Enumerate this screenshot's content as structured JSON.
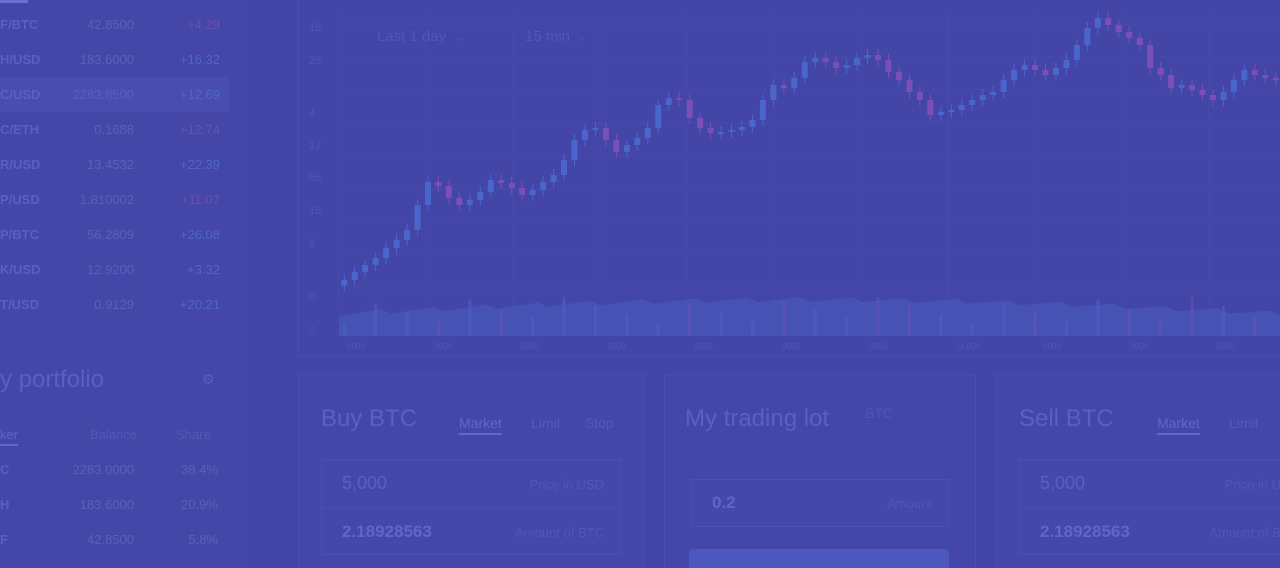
{
  "pairs": [
    {
      "name": "F/BTC",
      "price": "42.8500",
      "change": "+4.29",
      "trend": "neg"
    },
    {
      "name": "H/USD",
      "price": "183.6000",
      "change": "+16.32",
      "trend": "pos"
    },
    {
      "name": "C/USD",
      "price": "2283.8500",
      "change": "+12.69",
      "trend": "pos"
    },
    {
      "name": "C/ETH",
      "price": "0.1688",
      "change": "+12.74",
      "trend": "neg"
    },
    {
      "name": "R/USD",
      "price": "13.4532",
      "change": "+22.39",
      "trend": "pos"
    },
    {
      "name": "P/USD",
      "price": "1.810002",
      "change": "+11.07",
      "trend": "neg"
    },
    {
      "name": "P/BTC",
      "price": "56.2809",
      "change": "+26.08",
      "trend": "pos"
    },
    {
      "name": "K/USD",
      "price": "12.9200",
      "change": "+3.32",
      "trend": "pos"
    },
    {
      "name": "T/USD",
      "price": "0.9129",
      "change": "+20.21",
      "trend": "pos"
    }
  ],
  "portfolio": {
    "title": "y portfolio",
    "headers": {
      "ticker": "ker",
      "balance": "Balance",
      "share": "Share"
    },
    "rows": [
      {
        "ticker": "C",
        "balance": "2283.0000",
        "share": "38.4%"
      },
      {
        "ticker": "H",
        "balance": "183.6000",
        "share": "20.9%"
      },
      {
        "ticker": "F",
        "balance": "42.8500",
        "share": "5.8%"
      }
    ]
  },
  "chart": {
    "range_label": "Last 1 day",
    "interval_label": "15 min",
    "y_ticks": [
      {
        "label": "15",
        "top": 22
      },
      {
        "label": "25",
        "top": 55
      },
      {
        "label": "4",
        "top": 108
      },
      {
        "label": "17",
        "top": 140
      },
      {
        "label": "05",
        "top": 172
      },
      {
        "label": "15",
        "top": 205
      },
      {
        "label": "5",
        "top": 238
      },
      {
        "label": "0",
        "top": 292
      },
      {
        "label": "0",
        "top": 325
      }
    ],
    "x_ticks": [
      "0000",
      "0000",
      "0000",
      "0000",
      "0000",
      "0000",
      "0000",
      "11.000",
      "0000",
      "0000",
      "0000"
    ]
  },
  "chart_data": {
    "type": "candlestick",
    "colors": {
      "up": "#4a66cc",
      "down": "#7a4fb6",
      "volume": "#4a5bc0"
    },
    "closes": [
      280,
      272,
      265,
      258,
      248,
      240,
      230,
      205,
      182,
      186,
      198,
      205,
      200,
      192,
      180,
      183,
      188,
      195,
      190,
      182,
      175,
      160,
      140,
      130,
      128,
      140,
      152,
      145,
      138,
      128,
      105,
      98,
      100,
      118,
      128,
      133,
      132,
      130,
      127,
      120,
      100,
      85,
      88,
      78,
      62,
      58,
      62,
      68,
      65,
      58,
      55,
      60,
      72,
      80,
      92,
      100,
      115,
      112,
      110,
      105,
      100,
      95,
      92,
      80,
      70,
      65,
      70,
      75,
      68,
      60,
      45,
      28,
      18,
      25,
      32,
      38,
      45,
      68,
      75,
      88,
      85,
      90,
      95,
      100,
      92,
      80,
      70,
      75,
      78,
      80
    ]
  },
  "buy_panel": {
    "title": "Buy BTC",
    "tabs": [
      "Market",
      "Limit",
      "Stop"
    ],
    "price_value": "5,000",
    "price_hint": "Price in USD",
    "amount_value": "2.18928563",
    "amount_hint": "Amount of BTC"
  },
  "lot_panel": {
    "title": "My trading lot",
    "tag": "BTC",
    "amount_value": "0.2",
    "amount_hint": "Amount"
  },
  "sell_panel": {
    "title": "Sell BTC",
    "tabs": [
      "Market",
      "Limit"
    ],
    "price_value": "5,000",
    "price_hint": "Price in U",
    "amount_value": "2.18928563",
    "amount_hint": "Amount of B"
  }
}
